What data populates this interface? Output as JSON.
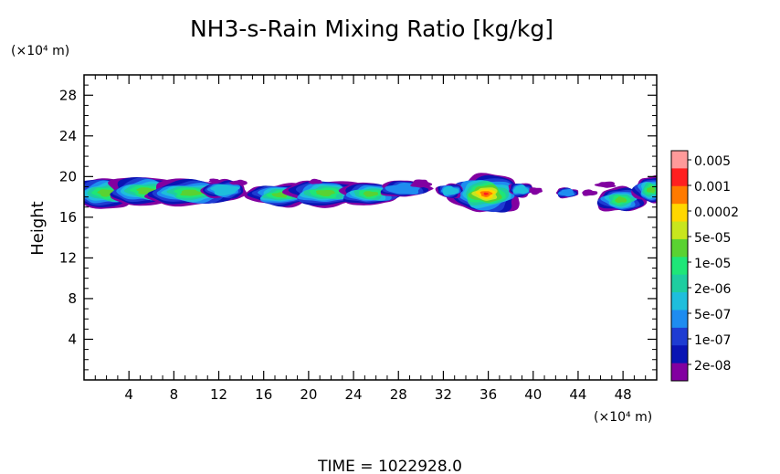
{
  "chart_data": {
    "type": "heatmap",
    "title": "NH3-s-Rain Mixing Ratio [kg/kg]",
    "ylabel": "Height",
    "xlabel": "",
    "x_unit_label": "(×10⁴ m)",
    "y_unit_label": "(×10⁴ m)",
    "x_range": [
      0,
      51
    ],
    "y_range": [
      0,
      30
    ],
    "x_ticks": [
      4,
      8,
      12,
      16,
      20,
      24,
      28,
      32,
      36,
      40,
      44,
      48
    ],
    "y_ticks": [
      4,
      8,
      12,
      16,
      20,
      24,
      28
    ],
    "colorbar": {
      "labels": [
        "0.005",
        "0.001",
        "0.0002",
        "5e-05",
        "1e-05",
        "2e-06",
        "5e-07",
        "1e-07",
        "2e-08"
      ],
      "colors_top_to_bottom": [
        "#ff9a9a",
        "#ff2020",
        "#ff7a00",
        "#ffd700",
        "#c8e61e",
        "#5ad232",
        "#1ee678",
        "#1ecda0",
        "#1ebedc",
        "#1e8cf0",
        "#1e3cd2",
        "#0a14b4",
        "#8200a0"
      ]
    },
    "regions": [
      {
        "name": "cloud-band-left",
        "x_range": [
          0,
          14.5
        ],
        "y_range": [
          17,
          20
        ],
        "peak_level": "2e-06"
      },
      {
        "name": "cloud-band-center",
        "x_range": [
          14.5,
          31
        ],
        "y_range": [
          17.2,
          19.8
        ],
        "peak_level": "2e-06"
      },
      {
        "name": "cloud-core-36",
        "x_range": [
          31.5,
          39.5
        ],
        "y_range": [
          16.3,
          20
        ],
        "peak_level": "0.001"
      },
      {
        "name": "cloud-patch-right",
        "x_range": [
          42,
          51
        ],
        "y_range": [
          16.5,
          20
        ],
        "peak_level": "2e-06"
      }
    ]
  },
  "footer": {
    "time_label": "TIME  =  1022928.0"
  }
}
